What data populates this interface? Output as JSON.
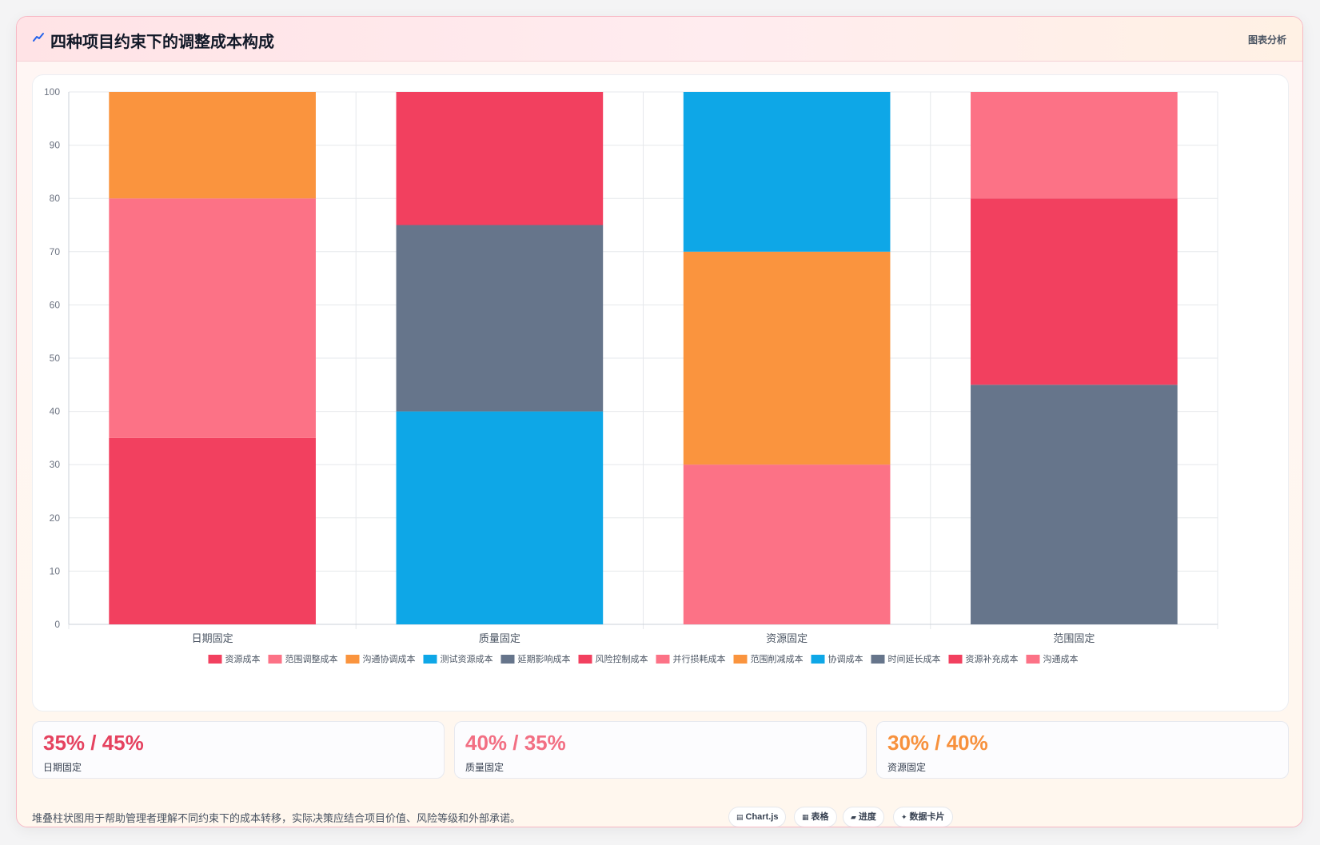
{
  "card": {
    "title": "四种项目约束下的调整成本构成",
    "tag": "图表分析",
    "footnote": "堆叠柱状图用于帮助管理者理解不同约束下的成本转移，实际决策应结合项目价值、风险等级和外部承诺。"
  },
  "stats": [
    {
      "value": "35% / 45%",
      "label": "日期固定",
      "color": "#e5425f"
    },
    {
      "value": "40% / 35%",
      "label": "质量固定",
      "color": "#f26f83"
    },
    {
      "value": "30% / 40%",
      "label": "资源固定",
      "color": "#f7913d"
    }
  ],
  "chips": [
    {
      "icon": "▤",
      "icon_name": "chart-icon",
      "label": "Chart.js"
    },
    {
      "icon": "▦",
      "icon_name": "table-icon",
      "label": "表格"
    },
    {
      "icon": "▰",
      "icon_name": "progress-icon",
      "label": "进度"
    },
    {
      "icon": "✦",
      "icon_name": "card-icon",
      "label": "数据卡片"
    }
  ],
  "chart_data": {
    "type": "bar",
    "stacked": true,
    "categories": [
      "日期固定",
      "质量固定",
      "资源固定",
      "范围固定"
    ],
    "ylim": [
      0,
      100
    ],
    "yticks": [
      0,
      10,
      20,
      30,
      40,
      50,
      60,
      70,
      80,
      90,
      100
    ],
    "grid": true,
    "legend_position": "bottom",
    "series": [
      {
        "name": "资源成本",
        "color": "#f2405f",
        "values": [
          35,
          null,
          null,
          null
        ]
      },
      {
        "name": "范围调整成本",
        "color": "#fc7286",
        "values": [
          45,
          null,
          null,
          null
        ]
      },
      {
        "name": "沟通协调成本",
        "color": "#fa943e",
        "values": [
          20,
          null,
          null,
          null
        ]
      },
      {
        "name": "测试资源成本",
        "color": "#0ea7e7",
        "values": [
          null,
          40,
          null,
          null
        ]
      },
      {
        "name": "延期影响成本",
        "color": "#66758b",
        "values": [
          null,
          35,
          null,
          null
        ]
      },
      {
        "name": "风险控制成本",
        "color": "#f2405f",
        "values": [
          null,
          25,
          null,
          null
        ]
      },
      {
        "name": "并行损耗成本",
        "color": "#fc7286",
        "values": [
          null,
          null,
          30,
          null
        ]
      },
      {
        "name": "范围削减成本",
        "color": "#fa943e",
        "values": [
          null,
          null,
          40,
          null
        ]
      },
      {
        "name": "协调成本",
        "color": "#0ea7e7",
        "values": [
          null,
          null,
          30,
          null
        ]
      },
      {
        "name": "时间延长成本",
        "color": "#66758b",
        "values": [
          null,
          null,
          null,
          45
        ]
      },
      {
        "name": "资源补充成本",
        "color": "#f2405f",
        "values": [
          null,
          null,
          null,
          35
        ]
      },
      {
        "name": "沟通成本",
        "color": "#fc7286",
        "values": [
          null,
          null,
          null,
          20
        ]
      }
    ]
  }
}
